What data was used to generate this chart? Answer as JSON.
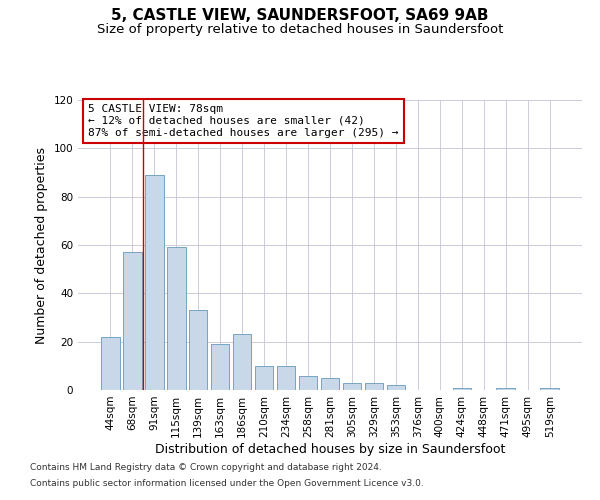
{
  "title": "5, CASTLE VIEW, SAUNDERSFOOT, SA69 9AB",
  "subtitle": "Size of property relative to detached houses in Saundersfoot",
  "xlabel": "Distribution of detached houses by size in Saundersfoot",
  "ylabel": "Number of detached properties",
  "footnote1": "Contains HM Land Registry data © Crown copyright and database right 2024.",
  "footnote2": "Contains public sector information licensed under the Open Government Licence v3.0.",
  "categories": [
    "44sqm",
    "68sqm",
    "91sqm",
    "115sqm",
    "139sqm",
    "163sqm",
    "186sqm",
    "210sqm",
    "234sqm",
    "258sqm",
    "281sqm",
    "305sqm",
    "329sqm",
    "353sqm",
    "376sqm",
    "400sqm",
    "424sqm",
    "448sqm",
    "471sqm",
    "495sqm",
    "519sqm"
  ],
  "values": [
    22,
    57,
    89,
    59,
    33,
    19,
    23,
    10,
    10,
    6,
    5,
    3,
    3,
    2,
    0,
    0,
    1,
    0,
    1,
    0,
    1
  ],
  "bar_color": "#c8d8e8",
  "bar_edge_color": "#6699bb",
  "grid_color": "#ccccdd",
  "annotation_text": "5 CASTLE VIEW: 78sqm\n← 12% of detached houses are smaller (42)\n87% of semi-detached houses are larger (295) →",
  "annotation_box_color": "#ffffff",
  "annotation_box_edge_color": "#cc0000",
  "vline_x": 1.5,
  "vline_color": "#cc0000",
  "ylim": [
    0,
    120
  ],
  "yticks": [
    0,
    20,
    40,
    60,
    80,
    100,
    120
  ],
  "title_fontsize": 11,
  "subtitle_fontsize": 9.5,
  "xlabel_fontsize": 9,
  "ylabel_fontsize": 9,
  "annotation_fontsize": 8,
  "tick_fontsize": 7.5,
  "footnote_fontsize": 6.5,
  "background_color": "#ffffff"
}
